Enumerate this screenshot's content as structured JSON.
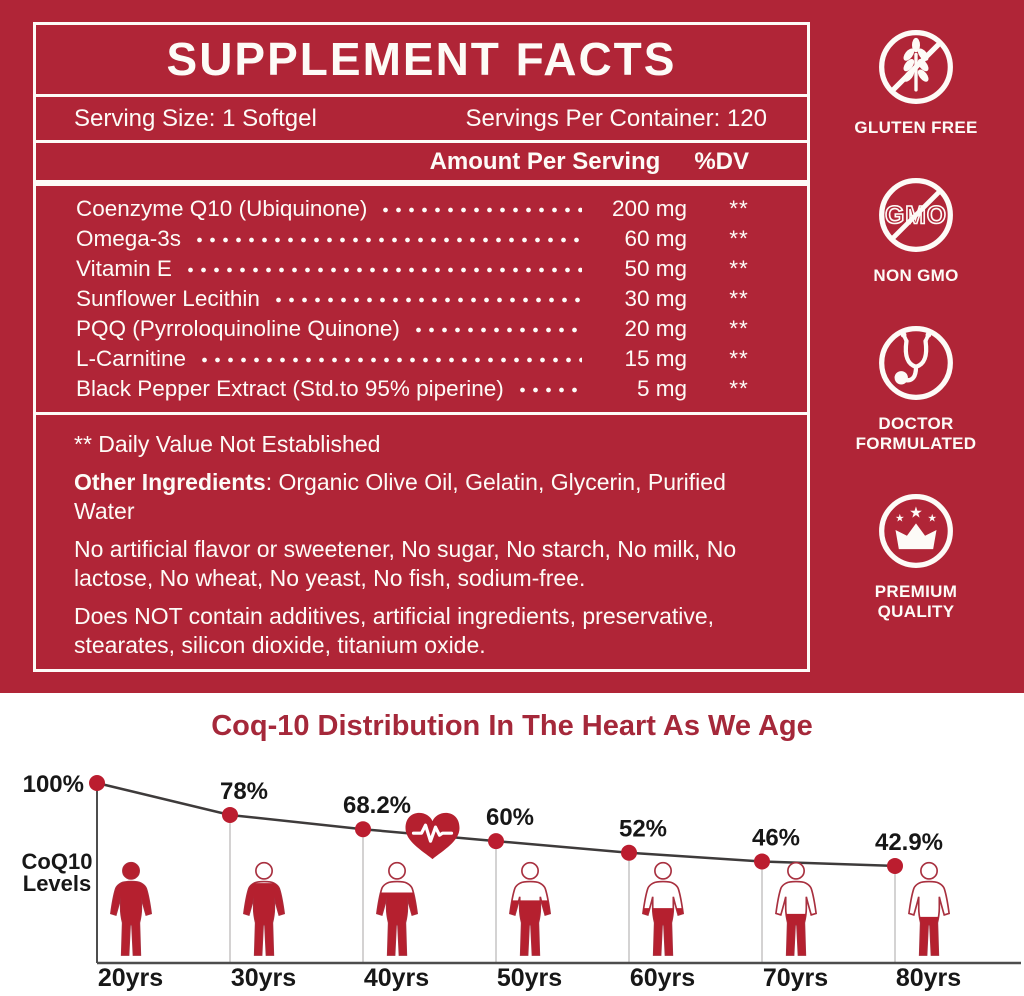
{
  "label": {
    "title": "SUPPLEMENT FACTS",
    "serving_size": "Serving Size: 1 Softgel",
    "servings_per_container": "Servings Per Container: 120",
    "amount_header": "Amount Per Serving",
    "dv_header": "%DV",
    "ingredients": [
      {
        "name": "Coenzyme Q10 (Ubiquinone)",
        "amount": "200 mg",
        "dv": "**"
      },
      {
        "name": "Omega-3s",
        "amount": "60 mg",
        "dv": "**"
      },
      {
        "name": "Vitamin E",
        "amount": "50 mg",
        "dv": "**"
      },
      {
        "name": "Sunflower Lecithin",
        "amount": "30 mg",
        "dv": "**"
      },
      {
        "name": "PQQ (Pyrroloquinoline Quinone)",
        "amount": "20 mg",
        "dv": "**"
      },
      {
        "name": "L-Carnitine",
        "amount": "15 mg",
        "dv": "**"
      },
      {
        "name": "Black Pepper Extract (Std.to 95% piperine)",
        "amount": "5 mg",
        "dv": "**"
      }
    ],
    "footnote_dv": "** Daily Value Not Established",
    "other_ingredients_label": "Other Ingredients",
    "other_ingredients_text": ": Organic Olive Oil, Gelatin, Glycerin, Purified Water",
    "claims_1": "No artificial flavor or sweetener, No sugar, No starch, No milk, No lactose, No wheat, No yeast, No fish, sodium-free.",
    "claims_2": "Does NOT contain additives, artificial ingredients, preservative, stearates, silicon dioxide, titanium oxide."
  },
  "badges": [
    {
      "icon": "wheat-crossed-icon",
      "label": "GLUTEN FREE"
    },
    {
      "icon": "gmo-crossed-icon",
      "label": "NON GMO",
      "icon_text": "GMO"
    },
    {
      "icon": "stethoscope-icon",
      "label": "DOCTOR FORMULATED"
    },
    {
      "icon": "crown-stars-icon",
      "label": "PREMIUM QUALITY"
    }
  ],
  "colors": {
    "brand_red": "#b02537",
    "panel_text": "#fdfbf7",
    "chart_title_red": "#a5283a",
    "figure_red": "#b5202f",
    "dot_red": "#bb1d2f",
    "trend_line": "#3e3b3b",
    "axis": "#4d4d4d",
    "drop_line": "#c6c4c4",
    "chart_text": "#171717"
  },
  "chart_data": {
    "type": "line",
    "title": "Coq-10 Distribution In The Heart As We Age",
    "ylabel": "CoQ10 Levels",
    "xlabel": "",
    "categories": [
      "20yrs",
      "30yrs",
      "40yrs",
      "50yrs",
      "60yrs",
      "70yrs",
      "80yrs"
    ],
    "values": [
      100,
      78,
      68.2,
      60,
      52,
      46,
      42.9
    ],
    "point_labels": [
      "100%",
      "78%",
      "68.2%",
      "60%",
      "52%",
      "46%",
      "42.9%"
    ],
    "ylim": [
      0,
      100
    ],
    "grid": false,
    "legend": "none",
    "annotation": {
      "icon": "heart-pulse-icon",
      "between": [
        "40yrs",
        "50yrs"
      ]
    }
  }
}
